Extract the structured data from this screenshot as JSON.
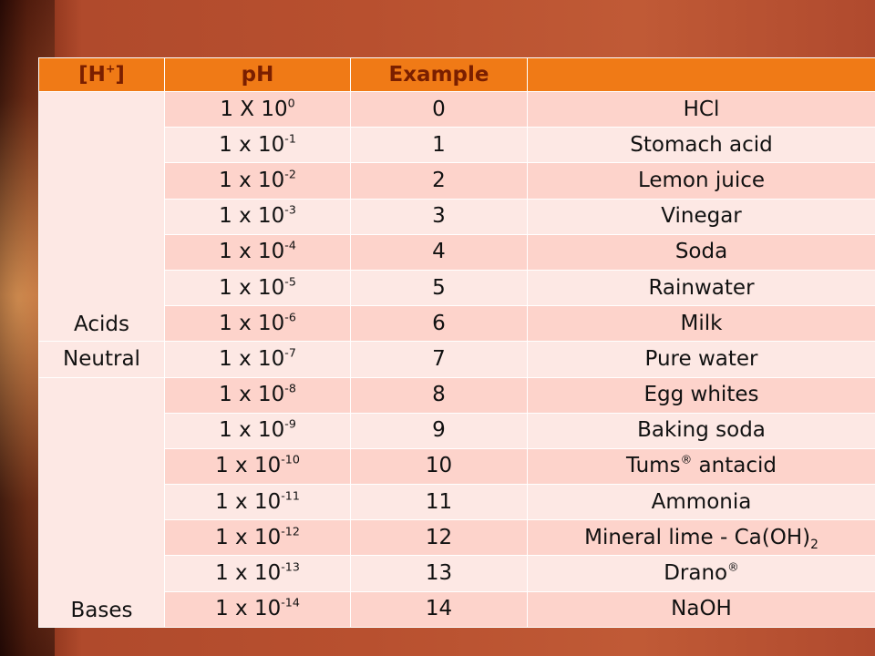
{
  "headers": [
    "[H",
    "+",
    "]",
    "pH",
    "Example",
    ""
  ],
  "groups": {
    "acids": "Acids",
    "neutral": "Neutral",
    "bases": "Bases"
  },
  "rows": [
    {
      "base": "1 X 10",
      "exp": "0",
      "ph": "0",
      "example": "HCl",
      "mark": "",
      "sub": ""
    },
    {
      "base": "1 x 10",
      "exp": "-1",
      "ph": "1",
      "example": "Stomach acid",
      "mark": "",
      "sub": ""
    },
    {
      "base": "1 x 10",
      "exp": "-2",
      "ph": "2",
      "example": "Lemon juice",
      "mark": "",
      "sub": ""
    },
    {
      "base": "1 x 10",
      "exp": "-3",
      "ph": "3",
      "example": "Vinegar",
      "mark": "",
      "sub": ""
    },
    {
      "base": "1 x 10",
      "exp": "-4",
      "ph": "4",
      "example": "Soda",
      "mark": "",
      "sub": ""
    },
    {
      "base": "1 x 10",
      "exp": "-5",
      "ph": "5",
      "example": "Rainwater",
      "mark": "",
      "sub": ""
    },
    {
      "base": "1 x 10",
      "exp": "-6",
      "ph": "6",
      "example": "Milk",
      "mark": "",
      "sub": ""
    },
    {
      "base": "1 x 10",
      "exp": "-7",
      "ph": "7",
      "example": "Pure water",
      "mark": "",
      "sub": ""
    },
    {
      "base": "1 x 10",
      "exp": "-8",
      "ph": "8",
      "example": "Egg whites",
      "mark": "",
      "sub": ""
    },
    {
      "base": "1 x 10",
      "exp": "-9",
      "ph": "9",
      "example": "Baking soda",
      "mark": "",
      "sub": ""
    },
    {
      "base": "1 x 10",
      "exp": "-10",
      "ph": "10",
      "example": "Tums",
      "mark": "®",
      "after": " antacid",
      "sub": ""
    },
    {
      "base": "1 x 10",
      "exp": "-11",
      "ph": "11",
      "example": "Ammonia",
      "mark": "",
      "sub": ""
    },
    {
      "base": "1 x 10",
      "exp": "-12",
      "ph": "12",
      "example": "Mineral lime - Ca(OH)",
      "mark": "",
      "sub": "2"
    },
    {
      "base": "1 x 10",
      "exp": "-13",
      "ph": "13",
      "example": "Drano",
      "mark": "®",
      "sub": ""
    },
    {
      "base": "1 x 10",
      "exp": "-14",
      "ph": "14",
      "example": "NaOH",
      "mark": "",
      "sub": ""
    }
  ]
}
